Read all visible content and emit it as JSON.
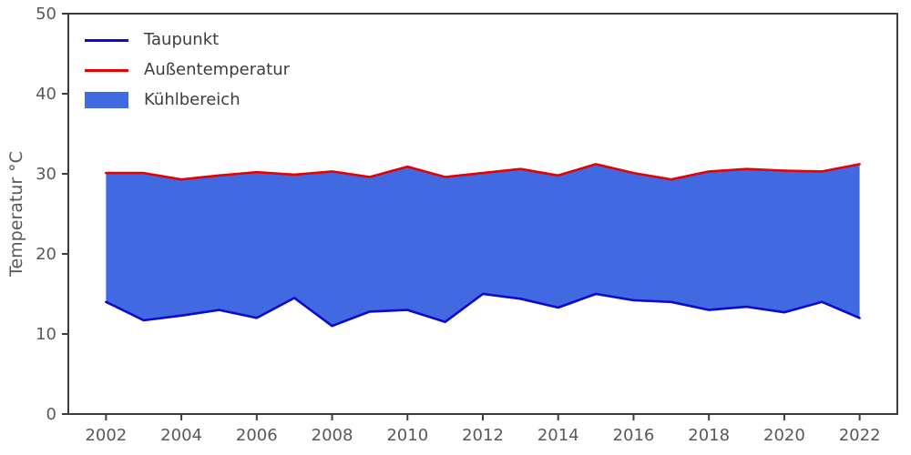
{
  "chart_data": {
    "type": "area",
    "title": "",
    "xlabel": "",
    "ylabel": "Temperatur °C",
    "x": [
      2002,
      2003,
      2004,
      2005,
      2006,
      2007,
      2008,
      2009,
      2010,
      2011,
      2012,
      2013,
      2014,
      2015,
      2016,
      2017,
      2018,
      2019,
      2020,
      2021,
      2022
    ],
    "series": [
      {
        "name": "Taupunkt",
        "color": "#0a0ad2",
        "values": [
          14.0,
          11.7,
          12.3,
          13.0,
          12.0,
          14.5,
          11.0,
          12.8,
          13.0,
          11.5,
          15.0,
          14.4,
          13.3,
          15.0,
          14.2,
          14.0,
          13.0,
          13.4,
          12.7,
          14.0,
          12.0
        ]
      },
      {
        "name": "Außentemperatur",
        "color": "#e60000",
        "values": [
          30.1,
          30.1,
          29.3,
          29.8,
          30.2,
          29.9,
          30.3,
          29.6,
          30.9,
          29.6,
          30.1,
          30.6,
          29.8,
          31.2,
          30.1,
          29.3,
          30.3,
          30.6,
          30.4,
          30.3,
          31.2
        ]
      }
    ],
    "fill": {
      "label": "Kühlbereich",
      "color": "#4169e1",
      "between": [
        "Taupunkt",
        "Außentemperatur"
      ]
    },
    "xlim": [
      2001,
      2023
    ],
    "ylim": [
      0,
      50
    ],
    "xticks": [
      2002,
      2004,
      2006,
      2008,
      2010,
      2012,
      2014,
      2016,
      2018,
      2020,
      2022
    ],
    "yticks": [
      0,
      10,
      20,
      30,
      40,
      50
    ],
    "grid": false,
    "legend_position": "upper-left",
    "axis_color": "#3d3d3d",
    "text_color": "#595959"
  }
}
